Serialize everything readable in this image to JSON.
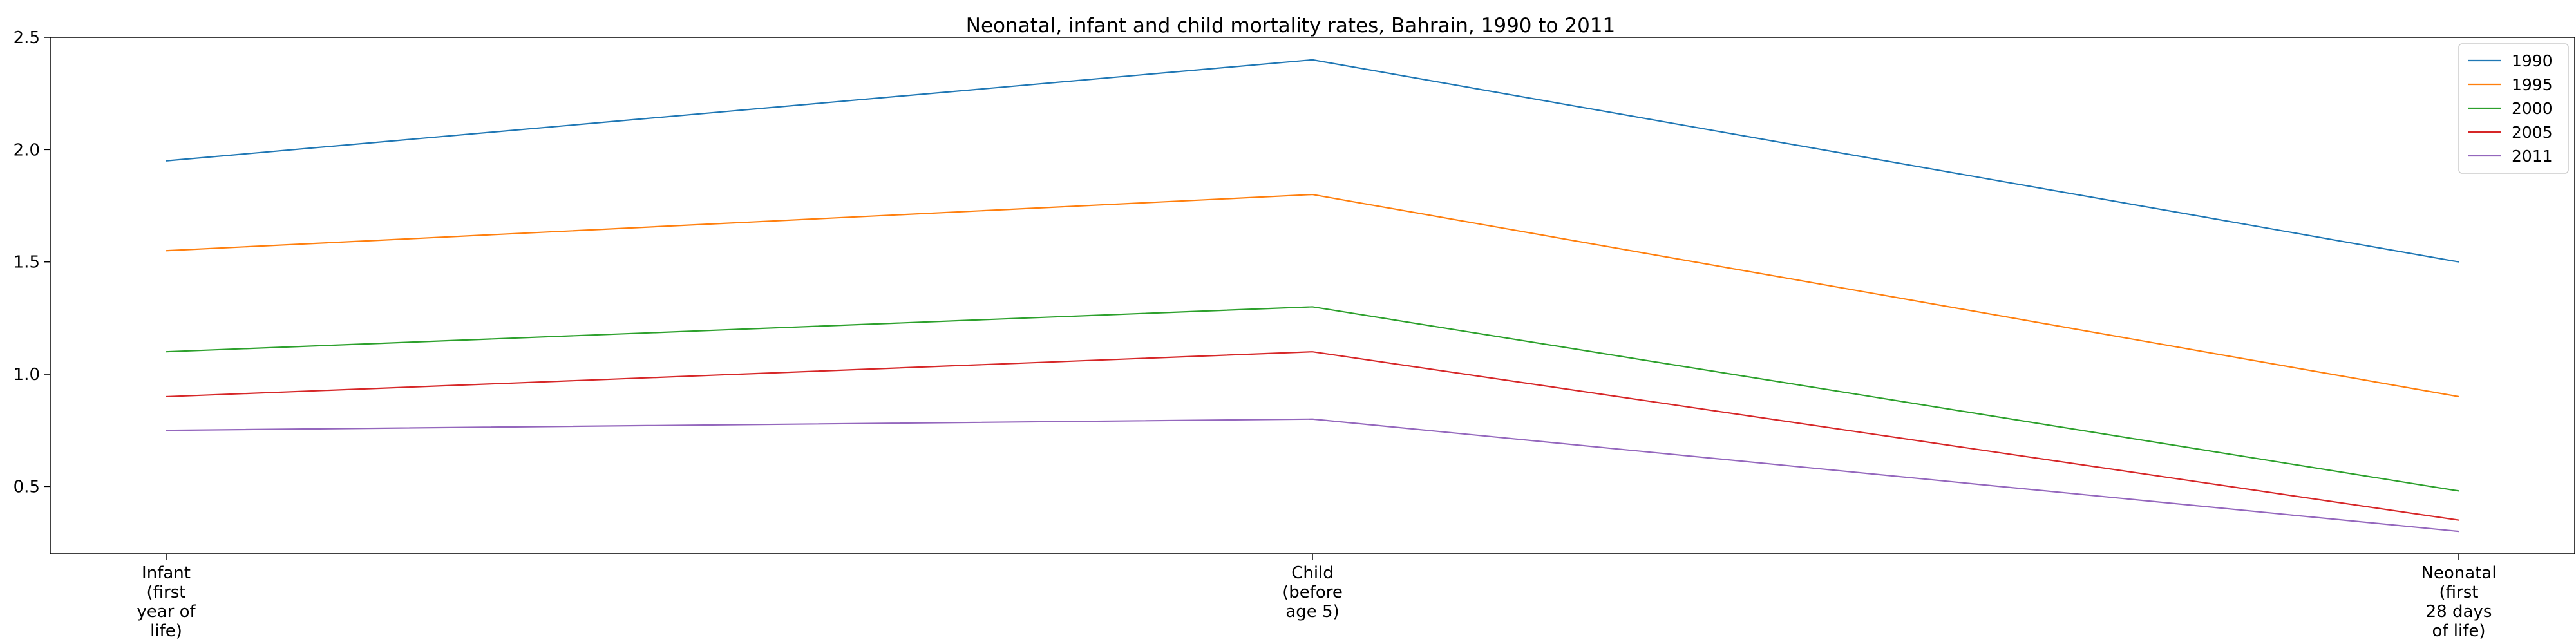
{
  "chart_data": {
    "type": "line",
    "title": "Neonatal, infant and child mortality rates, Bahrain, 1990 to 2011",
    "xlabel": "",
    "ylabel": "",
    "categories": [
      [
        "Infant",
        "(first",
        "year of",
        "life)"
      ],
      [
        "Child",
        "(before",
        "age 5)"
      ],
      [
        "Neonatal",
        "(first",
        "28 days",
        "of life)"
      ]
    ],
    "ylim": [
      0.2,
      2.5
    ],
    "yticks": [
      "0.5",
      "1.0",
      "1.5",
      "2.0",
      "2.5"
    ],
    "grid": false,
    "legend_position": "top-right",
    "series": [
      {
        "name": "1990",
        "color": "#1f77b4",
        "values": [
          1.95,
          2.4,
          1.5
        ]
      },
      {
        "name": "1995",
        "color": "#ff7f0e",
        "values": [
          1.55,
          1.8,
          0.9
        ]
      },
      {
        "name": "2000",
        "color": "#2ca02c",
        "values": [
          1.1,
          1.3,
          0.48
        ]
      },
      {
        "name": "2005",
        "color": "#d62728",
        "values": [
          0.9,
          1.1,
          0.35
        ]
      },
      {
        "name": "2011",
        "color": "#9467bd",
        "values": [
          0.75,
          0.8,
          0.3
        ]
      }
    ]
  }
}
